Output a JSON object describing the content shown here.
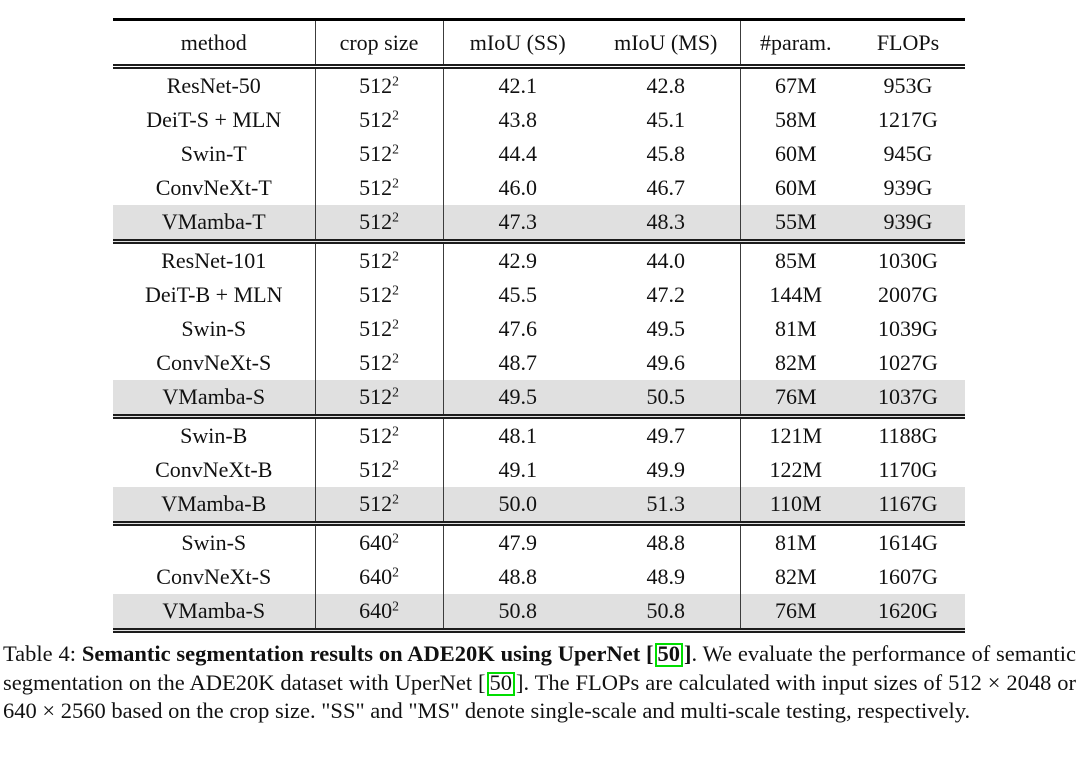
{
  "colors": {
    "highlight_row": "#e0e0e0",
    "citation_box": "#00dd00",
    "rule": "#1c1c1c"
  },
  "table": {
    "columns": [
      "method",
      "crop size",
      "mIoU (SS)",
      "mIoU (MS)",
      "#param.",
      "FLOPs"
    ],
    "groups": [
      {
        "rows": [
          {
            "method": "ResNet-50",
            "crop": "512",
            "crop_sup": "2",
            "miou_ss": "42.1",
            "miou_ms": "42.8",
            "params": "67M",
            "flops": "953G",
            "highlight": false
          },
          {
            "method": "DeiT-S + MLN",
            "crop": "512",
            "crop_sup": "2",
            "miou_ss": "43.8",
            "miou_ms": "45.1",
            "params": "58M",
            "flops": "1217G",
            "highlight": false
          },
          {
            "method": "Swin-T",
            "crop": "512",
            "crop_sup": "2",
            "miou_ss": "44.4",
            "miou_ms": "45.8",
            "params": "60M",
            "flops": "945G",
            "highlight": false
          },
          {
            "method": "ConvNeXt-T",
            "crop": "512",
            "crop_sup": "2",
            "miou_ss": "46.0",
            "miou_ms": "46.7",
            "params": "60M",
            "flops": "939G",
            "highlight": false
          },
          {
            "method": "VMamba-T",
            "crop": "512",
            "crop_sup": "2",
            "miou_ss": "47.3",
            "miou_ms": "48.3",
            "params": "55M",
            "flops": "939G",
            "highlight": true
          }
        ]
      },
      {
        "rows": [
          {
            "method": "ResNet-101",
            "crop": "512",
            "crop_sup": "2",
            "miou_ss": "42.9",
            "miou_ms": "44.0",
            "params": "85M",
            "flops": "1030G",
            "highlight": false
          },
          {
            "method": "DeiT-B + MLN",
            "crop": "512",
            "crop_sup": "2",
            "miou_ss": "45.5",
            "miou_ms": "47.2",
            "params": "144M",
            "flops": "2007G",
            "highlight": false
          },
          {
            "method": "Swin-S",
            "crop": "512",
            "crop_sup": "2",
            "miou_ss": "47.6",
            "miou_ms": "49.5",
            "params": "81M",
            "flops": "1039G",
            "highlight": false
          },
          {
            "method": "ConvNeXt-S",
            "crop": "512",
            "crop_sup": "2",
            "miou_ss": "48.7",
            "miou_ms": "49.6",
            "params": "82M",
            "flops": "1027G",
            "highlight": false
          },
          {
            "method": "VMamba-S",
            "crop": "512",
            "crop_sup": "2",
            "miou_ss": "49.5",
            "miou_ms": "50.5",
            "params": "76M",
            "flops": "1037G",
            "highlight": true
          }
        ]
      },
      {
        "rows": [
          {
            "method": "Swin-B",
            "crop": "512",
            "crop_sup": "2",
            "miou_ss": "48.1",
            "miou_ms": "49.7",
            "params": "121M",
            "flops": "1188G",
            "highlight": false
          },
          {
            "method": "ConvNeXt-B",
            "crop": "512",
            "crop_sup": "2",
            "miou_ss": "49.1",
            "miou_ms": "49.9",
            "params": "122M",
            "flops": "1170G",
            "highlight": false
          },
          {
            "method": "VMamba-B",
            "crop": "512",
            "crop_sup": "2",
            "miou_ss": "50.0",
            "miou_ms": "51.3",
            "params": "110M",
            "flops": "1167G",
            "highlight": true
          }
        ]
      },
      {
        "rows": [
          {
            "method": "Swin-S",
            "crop": "640",
            "crop_sup": "2",
            "miou_ss": "47.9",
            "miou_ms": "48.8",
            "params": "81M",
            "flops": "1614G",
            "highlight": false
          },
          {
            "method": "ConvNeXt-S",
            "crop": "640",
            "crop_sup": "2",
            "miou_ss": "48.8",
            "miou_ms": "48.9",
            "params": "82M",
            "flops": "1607G",
            "highlight": false
          },
          {
            "method": "VMamba-S",
            "crop": "640",
            "crop_sup": "2",
            "miou_ss": "50.8",
            "miou_ms": "50.8",
            "params": "76M",
            "flops": "1620G",
            "highlight": true
          }
        ]
      }
    ]
  },
  "caption": {
    "prefix": "Table 4: ",
    "bold_main": "Semantic segmentation results on ADE20K using UperNet [",
    "cite1": "50",
    "bold_close": "]",
    "body_mid": ". We evaluate the performance of semantic segmentation on the ADE20K dataset with UperNet [",
    "cite2": "50",
    "body_end": "]. The FLOPs are calculated with input sizes of 512 × 2048 or 640 × 2560 based on the crop size. \"SS\" and \"MS\" denote single-scale and multi-scale testing, respectively."
  }
}
